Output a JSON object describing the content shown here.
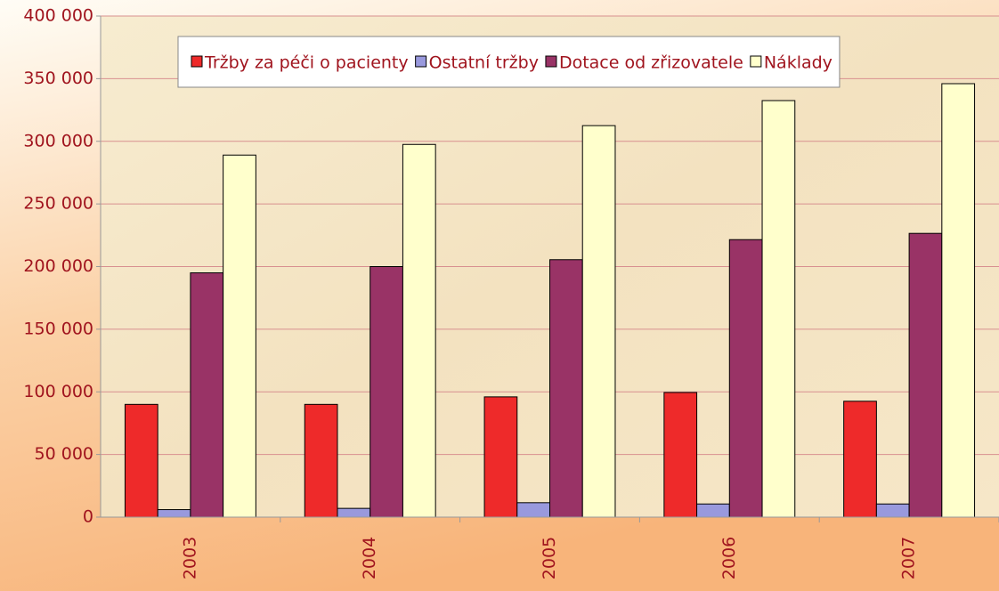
{
  "chart_data": {
    "type": "bar",
    "categories": [
      "2003",
      "2004",
      "2005",
      "2006",
      "2007"
    ],
    "series": [
      {
        "name": "Tržby za péči o pacienty",
        "color": "#ee2a2a",
        "values": [
          90000,
          90000,
          96000,
          99500,
          92500
        ]
      },
      {
        "name": "Ostatní tržby",
        "color": "#9999dd",
        "values": [
          6000,
          7000,
          11500,
          10500,
          10500
        ]
      },
      {
        "name": "Dotace od zřizovatele",
        "color": "#993366",
        "values": [
          195000,
          200000,
          205500,
          221500,
          226500
        ]
      },
      {
        "name": "Náklady",
        "color": "#ffffcc",
        "values": [
          289000,
          297500,
          312500,
          332500,
          346000
        ]
      }
    ],
    "ylim": [
      0,
      400000
    ],
    "yticks": [
      {
        "value": 0,
        "label": "0"
      },
      {
        "value": 50000,
        "label": "50 000"
      },
      {
        "value": 100000,
        "label": "100 000"
      },
      {
        "value": 150000,
        "label": "150 000"
      },
      {
        "value": 200000,
        "label": "200 000"
      },
      {
        "value": 250000,
        "label": "250 000"
      },
      {
        "value": 300000,
        "label": "300 000"
      },
      {
        "value": 350000,
        "label": "350 000"
      },
      {
        "value": 400000,
        "label": "400 000"
      }
    ],
    "grid": true,
    "legend": "top"
  }
}
